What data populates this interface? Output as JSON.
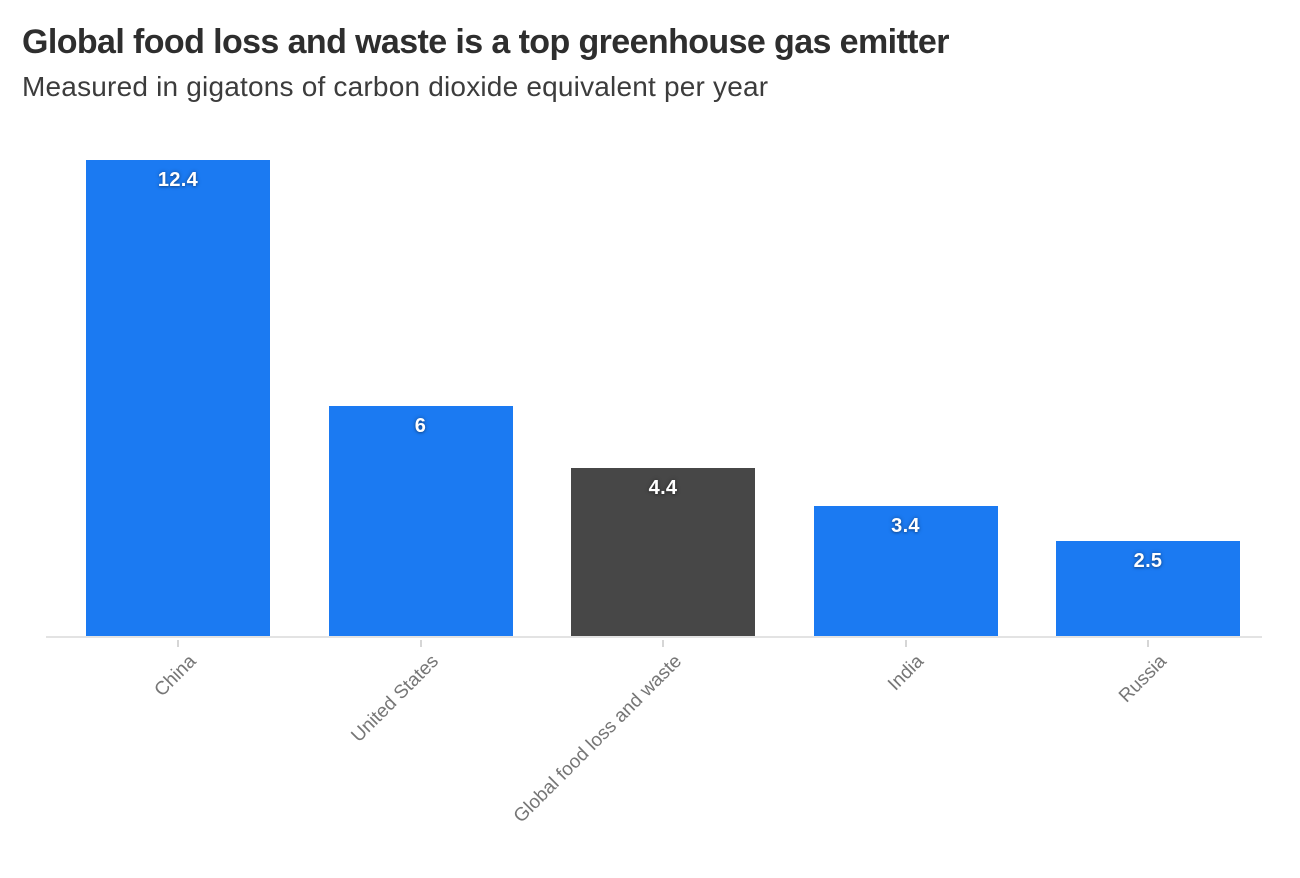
{
  "header": {
    "title": "Global food loss and waste is a top greenhouse gas emitter",
    "subtitle": "Measured in gigatons of carbon dioxide equivalent per year"
  },
  "chart_data": {
    "type": "bar",
    "title": "Global food loss and waste is a top greenhouse gas emitter",
    "subtitle": "Measured in gigatons of carbon dioxide equivalent per year",
    "categories": [
      "China",
      "United States",
      "Global food loss and waste",
      "India",
      "Russia"
    ],
    "values": [
      12.4,
      6,
      4.4,
      3.4,
      2.5
    ],
    "value_labels": [
      "12.4",
      "6",
      "4.4",
      "3.4",
      "2.5"
    ],
    "bar_colors": [
      "#1b7af2",
      "#1b7af2",
      "#474747",
      "#1b7af2",
      "#1b7af2"
    ],
    "highlight_category": "Global food loss and waste",
    "xlabel": "",
    "ylabel": "",
    "unit": "gigatons CO2 equivalent per year",
    "ylim": [
      0,
      12.9
    ],
    "grid": false,
    "legend": false,
    "orientation": "vertical",
    "value_label_position": "inside-top",
    "x_tick_rotation_deg": 45,
    "colors": {
      "bar_primary": "#1b7af2",
      "bar_highlight": "#474747",
      "value_label_text": "#ffffff",
      "title_text": "#2e2e2e",
      "subtitle_text": "#3c3c3c",
      "axis_label_text": "#767676",
      "axis_line": "#e3e3e3",
      "tick": "#d6d6d6",
      "background": "#ffffff"
    }
  }
}
